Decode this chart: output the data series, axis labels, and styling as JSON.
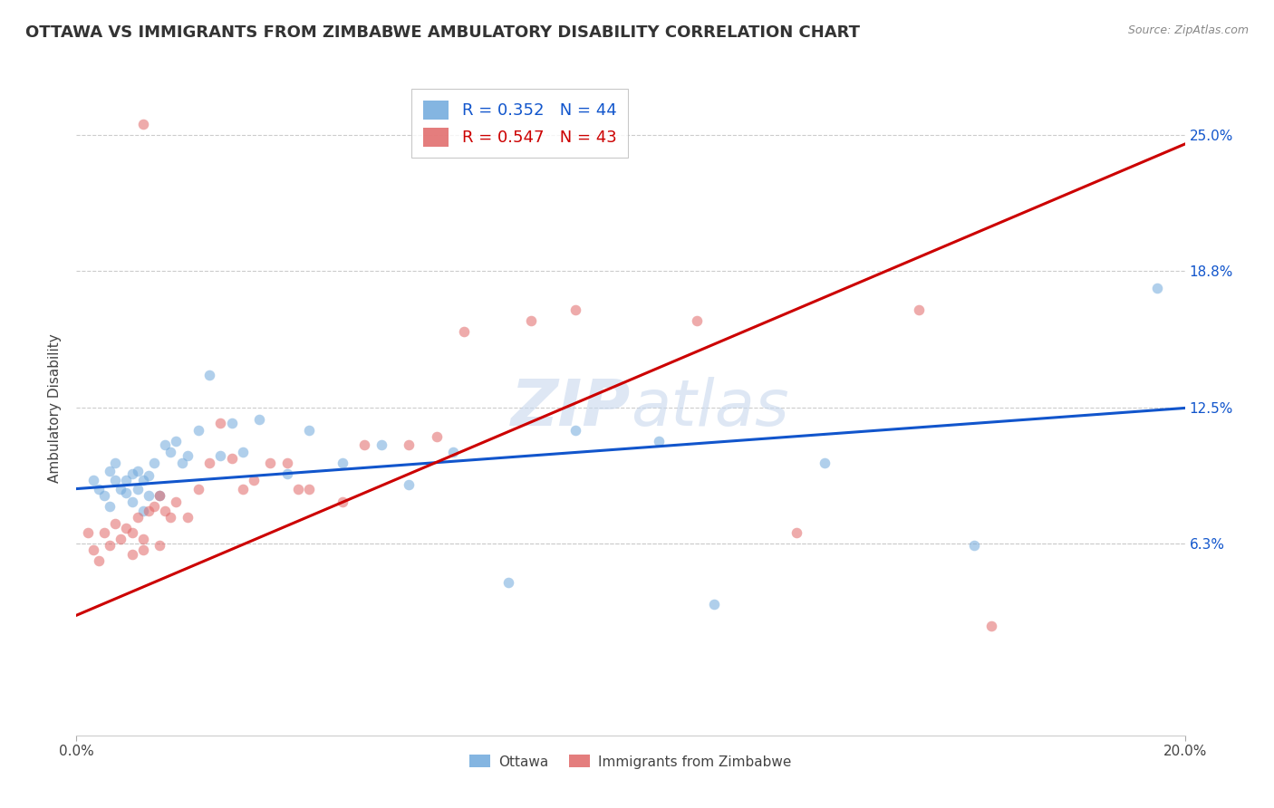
{
  "title": "OTTAWA VS IMMIGRANTS FROM ZIMBABWE AMBULATORY DISABILITY CORRELATION CHART",
  "source": "Source: ZipAtlas.com",
  "ylabel": "Ambulatory Disability",
  "xlim": [
    0.0,
    0.2
  ],
  "ylim": [
    -0.025,
    0.275
  ],
  "ytick_positions": [
    0.063,
    0.125,
    0.188,
    0.25
  ],
  "ytick_labels": [
    "6.3%",
    "12.5%",
    "18.8%",
    "25.0%"
  ],
  "xtick_positions": [
    0.0,
    0.2
  ],
  "xtick_labels": [
    "0.0%",
    "20.0%"
  ],
  "legend_r1": "R = 0.352   N = 44",
  "legend_r2": "R = 0.547   N = 43",
  "legend1_label": "Ottawa",
  "legend2_label": "Immigrants from Zimbabwe",
  "blue_color": "#6fa8dc",
  "pink_color": "#e06666",
  "blue_line_color": "#1155cc",
  "pink_line_color": "#cc0000",
  "watermark_zip": "ZIP",
  "watermark_atlas": "atlas",
  "blue_line_intercept": 0.088,
  "blue_line_slope": 0.185,
  "pink_line_intercept": 0.03,
  "pink_line_slope": 1.08,
  "grid_color": "#cccccc",
  "background_color": "#ffffff",
  "title_fontsize": 13,
  "axis_label_fontsize": 11,
  "tick_fontsize": 11,
  "scatter_size": 70,
  "scatter_alpha": 0.55,
  "line_width": 2.2,
  "blue_scatter_x": [
    0.003,
    0.004,
    0.005,
    0.006,
    0.006,
    0.007,
    0.007,
    0.008,
    0.009,
    0.009,
    0.01,
    0.01,
    0.011,
    0.011,
    0.012,
    0.012,
    0.013,
    0.013,
    0.014,
    0.015,
    0.016,
    0.017,
    0.018,
    0.019,
    0.02,
    0.022,
    0.024,
    0.026,
    0.028,
    0.03,
    0.033,
    0.038,
    0.042,
    0.048,
    0.055,
    0.06,
    0.068,
    0.078,
    0.09,
    0.105,
    0.115,
    0.135,
    0.162,
    0.195
  ],
  "blue_scatter_y": [
    0.092,
    0.088,
    0.085,
    0.096,
    0.08,
    0.092,
    0.1,
    0.088,
    0.092,
    0.086,
    0.095,
    0.082,
    0.096,
    0.088,
    0.092,
    0.078,
    0.094,
    0.085,
    0.1,
    0.085,
    0.108,
    0.105,
    0.11,
    0.1,
    0.103,
    0.115,
    0.14,
    0.103,
    0.118,
    0.105,
    0.12,
    0.095,
    0.115,
    0.1,
    0.108,
    0.09,
    0.105,
    0.045,
    0.115,
    0.11,
    0.035,
    0.1,
    0.062,
    0.18
  ],
  "pink_scatter_x": [
    0.002,
    0.003,
    0.004,
    0.005,
    0.006,
    0.007,
    0.008,
    0.009,
    0.01,
    0.01,
    0.011,
    0.012,
    0.012,
    0.013,
    0.014,
    0.015,
    0.015,
    0.016,
    0.017,
    0.018,
    0.02,
    0.022,
    0.024,
    0.026,
    0.028,
    0.03,
    0.032,
    0.035,
    0.038,
    0.04,
    0.042,
    0.048,
    0.052,
    0.06,
    0.065,
    0.07,
    0.082,
    0.012,
    0.09,
    0.112,
    0.13,
    0.152,
    0.165
  ],
  "pink_scatter_y": [
    0.068,
    0.06,
    0.055,
    0.068,
    0.062,
    0.072,
    0.065,
    0.07,
    0.068,
    0.058,
    0.075,
    0.065,
    0.06,
    0.078,
    0.08,
    0.062,
    0.085,
    0.078,
    0.075,
    0.082,
    0.075,
    0.088,
    0.1,
    0.118,
    0.102,
    0.088,
    0.092,
    0.1,
    0.1,
    0.088,
    0.088,
    0.082,
    0.108,
    0.108,
    0.112,
    0.16,
    0.165,
    0.255,
    0.17,
    0.165,
    0.068,
    0.17,
    0.025
  ]
}
